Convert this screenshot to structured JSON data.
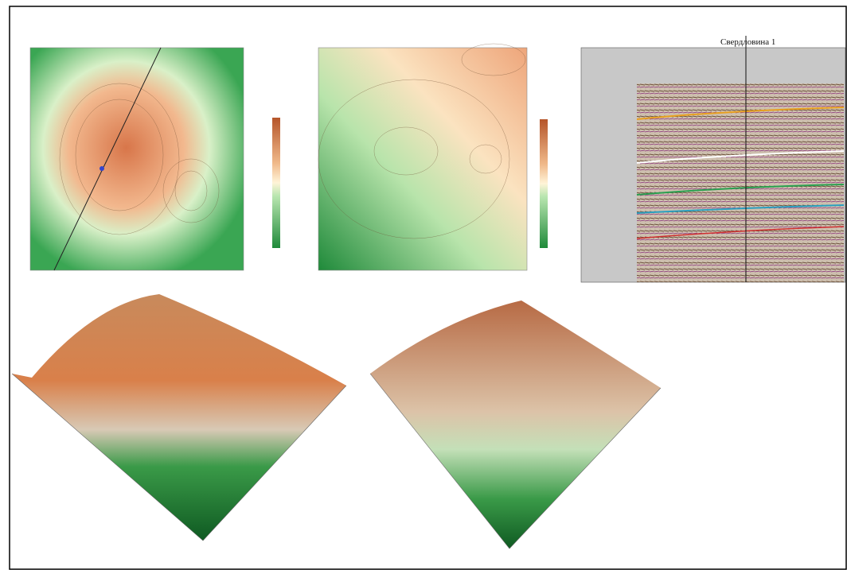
{
  "well_label": "Свердловина 1"
}
